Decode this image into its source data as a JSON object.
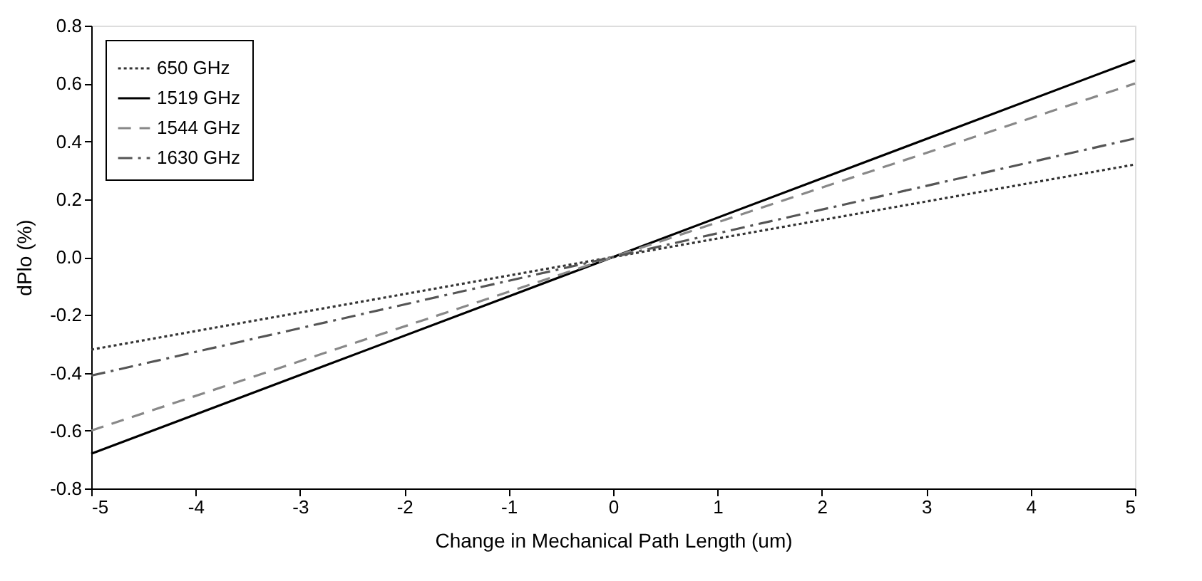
{
  "chart_data": {
    "type": "line",
    "xlabel": "Change in Mechanical Path Length (um)",
    "ylabel": "dPlo (%)",
    "x": [
      -5,
      0,
      5
    ],
    "series": [
      {
        "name": "650  GHz",
        "color": "#333333",
        "line_style": "dotted",
        "values": [
          -0.32,
          0,
          0.32
        ]
      },
      {
        "name": "1519 GHz",
        "color": "#000000",
        "line_style": "solid",
        "values": [
          -0.68,
          0,
          0.68
        ]
      },
      {
        "name": "1544 GHz",
        "color": "#888888",
        "line_style": "dashed",
        "values": [
          -0.6,
          0,
          0.6
        ]
      },
      {
        "name": "1630 GHz",
        "color": "#555555",
        "line_style": "dashdot",
        "values": [
          -0.41,
          0,
          0.41
        ]
      }
    ],
    "xlim": [
      -5,
      5
    ],
    "xticks": [
      -5,
      -4,
      -3,
      -2,
      -1,
      0,
      1,
      2,
      3,
      4,
      5
    ],
    "ylim": [
      -0.8,
      0.8
    ],
    "yticks": [
      {
        "value": -0.8,
        "label": "-0.8"
      },
      {
        "value": -0.6,
        "label": "-0.6"
      },
      {
        "value": -0.4,
        "label": "-0.4"
      },
      {
        "value": -0.2,
        "label": "-0.2"
      },
      {
        "value": 0,
        "label": "0.0"
      },
      {
        "value": 0.2,
        "label": "0.2"
      },
      {
        "value": 0.4,
        "label": "0.4"
      },
      {
        "value": 0.6,
        "label": "0.6"
      },
      {
        "value": 0.8,
        "label": "0.8"
      }
    ],
    "grid": false,
    "legend": "top left",
    "marker": "none"
  }
}
